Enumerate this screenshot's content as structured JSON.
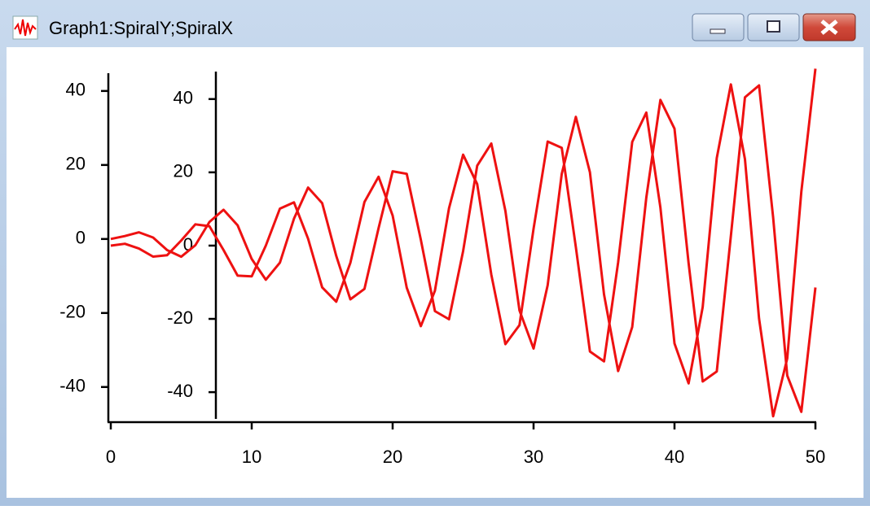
{
  "chart_data": {
    "type": "line",
    "title": "Graph1:SpiralY;SpiralX",
    "x": [
      0,
      1,
      2,
      3,
      4,
      5,
      6,
      7,
      8,
      9,
      10,
      11,
      12,
      13,
      14,
      15,
      16,
      17,
      18,
      19,
      20,
      21,
      22,
      23,
      24,
      25,
      26,
      27,
      28,
      29,
      30,
      31,
      32,
      33,
      34,
      35,
      36,
      37,
      38,
      39,
      40,
      41,
      42,
      43,
      44,
      45,
      46,
      47,
      48,
      49,
      50
    ],
    "series": [
      {
        "color": "#ee1111",
        "axis": "y",
        "values": [
          0,
          0.8,
          1.8,
          0.4,
          -3.0,
          -4.8,
          -1.7,
          4.6,
          7.9,
          3.7,
          -5.4,
          -11.0,
          -6.4,
          5.5,
          13.9,
          9.7,
          -4.6,
          -16.3,
          -13.5,
          2.9,
          18.3,
          17.6,
          -0.2,
          -19.5,
          -21.7,
          -3.3,
          19.8,
          25.8,
          7.6,
          -19.3,
          -29.6,
          -12.5,
          17.6,
          33.0,
          18.0,
          -15.0,
          -35.7,
          -23.8,
          11.2,
          37.6,
          29.8,
          -6.5,
          -38.5,
          -35.8,
          0.8,
          38.3,
          41.5,
          5.8,
          -36.9,
          -46.7,
          -13.1
        ]
      },
      {
        "color": "#ee1111",
        "axis": "y2",
        "values": [
          0,
          0.5,
          -0.8,
          -3.0,
          -2.6,
          1.4,
          5.8,
          5.3,
          -1.2,
          -8.2,
          -8.4,
          0.0,
          10.1,
          11.8,
          1.9,
          -11.4,
          -15.3,
          -4.7,
          11.9,
          18.8,
          8.2,
          -11.5,
          -22.0,
          -12.3,
          10.2,
          24.8,
          16.8,
          -7.9,
          -26.9,
          -21.7,
          4.6,
          28.4,
          26.7,
          -0.4,
          -28.9,
          -31.6,
          -4.6,
          28.3,
          36.3,
          10.4,
          -26.7,
          -37.6,
          -16.8,
          23.9,
          44.0,
          23.6,
          -19.9,
          -46.6,
          -30.8,
          14.7,
          48.3
        ]
      }
    ],
    "xlim": [
      0,
      50
    ],
    "xticks": [
      0,
      10,
      20,
      30,
      40,
      50
    ],
    "ylim": [
      -49.5,
      44.8
    ],
    "yticks": [
      -40,
      -20,
      0,
      20,
      40
    ],
    "y2lim": [
      -47.3,
      47.5
    ],
    "y2ticks": [
      -40,
      -20,
      0,
      20,
      40
    ],
    "grid": false
  }
}
